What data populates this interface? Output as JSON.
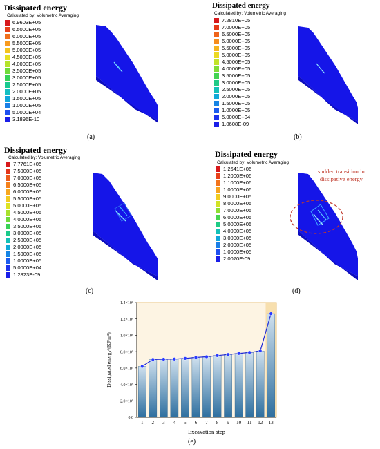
{
  "panels": [
    {
      "title": "Dissipated energy",
      "calc": "Calculated by: Volumetric Averaging",
      "label": "(a)",
      "legend": {
        "values": [
          "6.9603E+05",
          "6.5000E+05",
          "6.0000E+05",
          "5.5000E+05",
          "5.0000E+05",
          "4.5000E+05",
          "4.0000E+05",
          "3.5000E+05",
          "3.0000E+05",
          "2.5000E+05",
          "2.0000E+05",
          "1.5000E+05",
          "1.0000E+05",
          "5.0000E+04",
          "3.1896E-10"
        ],
        "colors": [
          "#d7191c",
          "#e8401a",
          "#f0701c",
          "#f79a1e",
          "#f4c31f",
          "#e6e023",
          "#b5e32a",
          "#6fdb3a",
          "#35d257",
          "#19c98f",
          "#13bfc2",
          "#10a6db",
          "#1a7fe6",
          "#1d4ff0",
          "#1a1ee8"
        ]
      }
    },
    {
      "title": "Dissipated energy",
      "calc": "Calculated by: Volumetric Averaging",
      "label": "(b)",
      "legend": {
        "values": [
          "7.2810E+05",
          "7.0000E+05",
          "6.5000E+05",
          "6.0000E+05",
          "5.5000E+05",
          "5.0000E+05",
          "4.5000E+05",
          "4.0000E+05",
          "3.5000E+05",
          "3.0000E+05",
          "2.5000E+05",
          "2.0000E+05",
          "1.5000E+05",
          "1.0000E+05",
          "5.0000E+04",
          "1.0608E-09"
        ],
        "colors": [
          "#d7191c",
          "#e53a1a",
          "#ef641b",
          "#f68d1d",
          "#f5b41e",
          "#ecd922",
          "#c2e328",
          "#80dc36",
          "#43d451",
          "#1fcb86",
          "#14c1b8",
          "#10a9d8",
          "#1684e4",
          "#1b5cee",
          "#1c33ec",
          "#1a1ee8"
        ]
      }
    },
    {
      "title": "Dissipated energy",
      "calc": "Calculated by: Volumetric Averaging",
      "label": "(c)",
      "legend": {
        "values": [
          "7.7761E+05",
          "7.5000E+05",
          "7.0000E+05",
          "6.5000E+05",
          "6.0000E+05",
          "5.5000E+05",
          "5.0000E+05",
          "4.5000E+05",
          "4.0000E+05",
          "3.5000E+05",
          "3.0000E+05",
          "2.5000E+05",
          "2.0000E+05",
          "1.5000E+05",
          "1.0000E+05",
          "5.0000E+04",
          "1.2823E-09"
        ],
        "colors": [
          "#d7191c",
          "#e3351a",
          "#ec5c1b",
          "#f4811c",
          "#f7a71e",
          "#f2cb1f",
          "#dde324",
          "#a9e12c",
          "#6cdb3b",
          "#39d255",
          "#1bca8a",
          "#14c1b8",
          "#10a9d8",
          "#1684e4",
          "#1b5cee",
          "#1c33ec",
          "#1a1ee8"
        ]
      }
    },
    {
      "title": "Dissipated energy",
      "calc": "Calculated by: Volumetric Averaging",
      "label": "(d)",
      "annotation": [
        "sudden transition in",
        "dissipative energy"
      ],
      "legend": {
        "values": [
          "1.2641E+06",
          "1.2000E+06",
          "1.1000E+06",
          "1.0000E+06",
          "9.0000E+05",
          "8.0000E+05",
          "7.0000E+05",
          "6.0000E+05",
          "5.0000E+05",
          "4.0000E+05",
          "3.0000E+05",
          "2.0000E+05",
          "1.0000E+05",
          "2.0070E-09"
        ],
        "colors": [
          "#d7191c",
          "#e8401a",
          "#f2741c",
          "#f7a31e",
          "#f1cc1f",
          "#d2e325",
          "#8ede33",
          "#48d54f",
          "#1fcb86",
          "#14c1b8",
          "#10a6db",
          "#1a7fe6",
          "#1d4ff0",
          "#1a1ee8"
        ]
      }
    }
  ],
  "chart_label": "(e)",
  "chart_data": {
    "type": "bar",
    "xlabel": "Excavation step",
    "ylabel": "Dissipated energy/(KJ/m³)",
    "categories": [
      "1",
      "2",
      "3",
      "4",
      "5",
      "6",
      "7",
      "8",
      "9",
      "10",
      "11",
      "12",
      "13"
    ],
    "values": [
      620000,
      705000,
      708000,
      710000,
      718000,
      730000,
      738000,
      752000,
      765000,
      778000,
      790000,
      808000,
      1264100
    ],
    "ylim": [
      0,
      1400000
    ],
    "yticks": [
      0,
      200000,
      400000,
      600000,
      800000,
      1000000,
      1200000,
      1400000
    ],
    "ytick_labels": [
      "0.0",
      "2.0×10⁵",
      "4.0×10⁵",
      "6.0×10⁵",
      "8.0×10⁵",
      "1.0×10⁶",
      "1.2×10⁶",
      "1.4×10⁶"
    ],
    "line_overlay": true,
    "highlight_last": true,
    "colors": {
      "bar_top": "#cfe0ee",
      "bar_bottom": "#2e6f9f",
      "line": "#1f28d6",
      "marker": "#2a3bff",
      "bg": "#fdf4e3",
      "bg_last": "#f7dfae",
      "frame": "#e8c27a"
    }
  }
}
